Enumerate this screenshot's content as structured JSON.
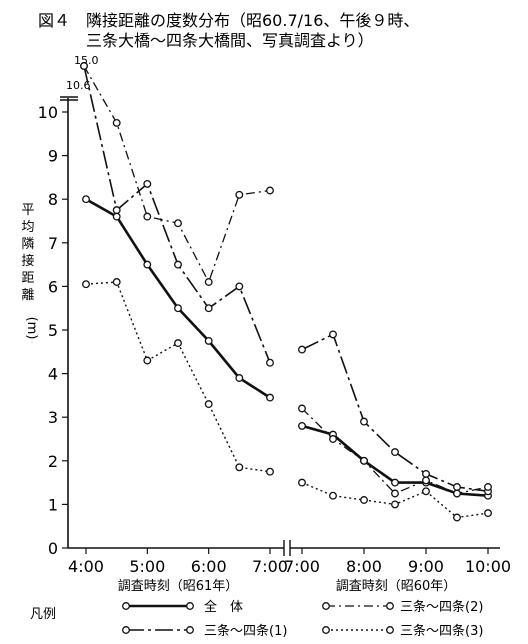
{
  "chart_data": {
    "type": "line",
    "title_line1": "図４　隣接距離の度数分布（昭60.7/16、午後９時、",
    "title_line2": "三条大橋～四条大橋間、写真調査より）",
    "ylabel_chars": [
      "平",
      "均",
      "隣",
      "接",
      "距",
      "離"
    ],
    "ylabel_unit": "(m)",
    "yticks": [
      "0",
      "1",
      "2",
      "3",
      "4",
      "5",
      "6",
      "7",
      "8",
      "9",
      "10"
    ],
    "ylim": [
      0,
      10.5
    ],
    "break_labels": [
      "15.0",
      "10.6"
    ],
    "left_panel": {
      "xlabel": "調査時刻（昭61年）",
      "xticks": [
        "4:00",
        "5:00",
        "6:00",
        "7:00"
      ],
      "x": [
        "4:00",
        "4:30",
        "5:00",
        "5:30",
        "6:00",
        "6:30",
        "7:00"
      ],
      "series": [
        {
          "key": "all",
          "values": [
            8.0,
            7.6,
            6.5,
            5.5,
            4.75,
            3.9,
            3.45
          ]
        },
        {
          "key": "s1",
          "values": [
            10.6,
            7.75,
            8.35,
            6.5,
            5.5,
            6.0,
            4.25
          ]
        },
        {
          "key": "s2",
          "values": [
            15.0,
            9.75,
            7.6,
            7.45,
            6.1,
            8.1,
            8.2
          ]
        },
        {
          "key": "s3",
          "values": [
            6.05,
            6.1,
            4.3,
            4.7,
            3.3,
            1.85,
            1.75
          ]
        }
      ]
    },
    "right_panel": {
      "xlabel": "調査時刻（昭60年）",
      "xticks": [
        "7:00",
        "8:00",
        "9:00",
        "10:00"
      ],
      "x": [
        "7:00",
        "7:30",
        "8:00",
        "8:30",
        "9:00",
        "9:30",
        "10:00"
      ],
      "series": [
        {
          "key": "all",
          "values": [
            2.8,
            2.6,
            2.0,
            1.5,
            1.5,
            1.25,
            1.2
          ]
        },
        {
          "key": "s1",
          "values": [
            4.55,
            4.9,
            2.9,
            2.2,
            1.7,
            1.4,
            1.3
          ]
        },
        {
          "key": "s2",
          "values": [
            3.2,
            2.5,
            2.0,
            1.25,
            1.55,
            1.25,
            1.4
          ]
        },
        {
          "key": "s3",
          "values": [
            1.5,
            1.2,
            1.1,
            1.0,
            1.3,
            0.7,
            0.8
          ]
        }
      ]
    },
    "legend": {
      "heading": "凡例",
      "items": [
        {
          "key": "all",
          "label": "全　体"
        },
        {
          "key": "s2",
          "label": "三条～四条(2)"
        },
        {
          "key": "s1",
          "label": "三条～四条(1)"
        },
        {
          "key": "s3",
          "label": "三条～四条(3)"
        }
      ]
    }
  }
}
